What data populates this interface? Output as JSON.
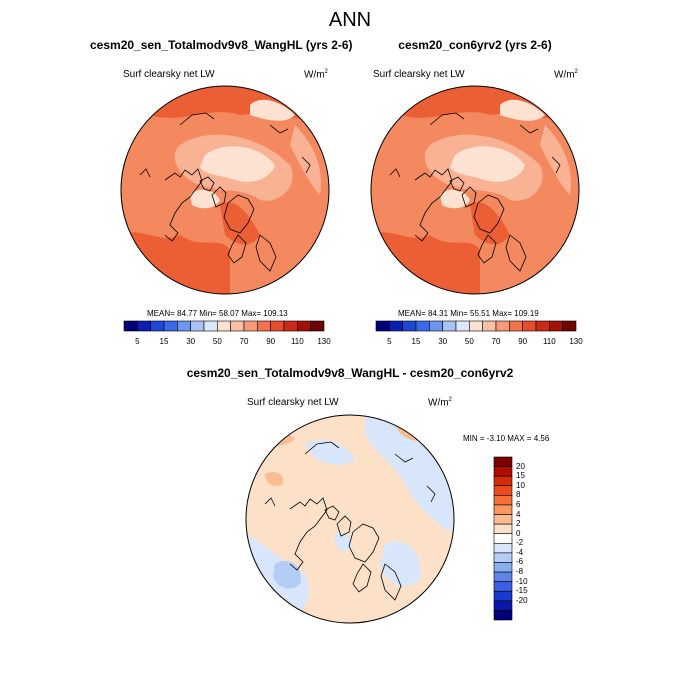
{
  "main_title": "ANN",
  "panels": [
    {
      "title": "cesm20_sen_Totalmodv9v8_WangHL (yrs 2-6)",
      "variable": "Surf clearsky net LW",
      "units": "W/m",
      "units_exponent": "2",
      "stats": "MEAN=  84.77  Min=  58.07  Max= 109.13"
    },
    {
      "title": "cesm20_con6yrv2 (yrs 2-6)",
      "variable": "Surf clearsky net LW",
      "units": "W/m",
      "units_exponent": "2",
      "stats": "MEAN=  84.31  Min=  55.51  Max= 109.19"
    },
    {
      "title": "cesm20_sen_Totalmodv9v8_WangHL - cesm20_con6yrv2",
      "variable": "Surf clearsky net LW",
      "units": "W/m",
      "units_exponent": "2",
      "stats": "MIN =  -3.10 MAX =   4.56"
    }
  ],
  "absolute_colorbar": {
    "colors": [
      "#00007a",
      "#0a1fb0",
      "#1f47d6",
      "#3b6ae8",
      "#6d94f0",
      "#a8c2f6",
      "#dbe8fb",
      "#fde2d2",
      "#fbc0a4",
      "#f89a78",
      "#f4734f",
      "#e84b2e",
      "#cc2a14",
      "#a01206",
      "#6f0400"
    ],
    "labels": [
      "5",
      "15",
      "30",
      "50",
      "70",
      "90",
      "110",
      "130"
    ]
  },
  "difference_colorbar": {
    "colors": [
      "#7a0000",
      "#b20c00",
      "#d52c08",
      "#ec4d1c",
      "#f6713a",
      "#f9995f",
      "#fbbc92",
      "#fde0c8",
      "#ffffff",
      "#d8e6fb",
      "#b3cdf6",
      "#8aaef0",
      "#5e86ea",
      "#3a5fe2",
      "#1a39cf",
      "#0a18a8",
      "#00007a"
    ],
    "labels": [
      "20",
      "15",
      "10",
      "8",
      "6",
      "4",
      "2",
      "0",
      "-2",
      "-4",
      "-6",
      "-8",
      "-10",
      "-15",
      "-20"
    ]
  },
  "map_colors": {
    "abs_base": "#f4895f",
    "abs_light": "#fde2d2",
    "abs_mid": "#f9b294",
    "abs_dark": "#ec5f35",
    "diff_base": "#fde0c8",
    "diff_blue": "#d8e6fb",
    "diff_blue2": "#b3cdf6",
    "diff_warm": "#fbbc92",
    "coast": "#000000"
  }
}
